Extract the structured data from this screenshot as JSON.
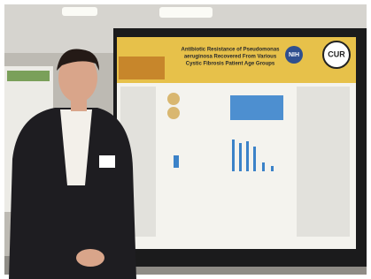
{
  "poster": {
    "title_lines": [
      "Antibiotic Resistance of Pseudomonas",
      "aeruginosa Recovered From Various",
      "Cystic Fibrosis Patient Age Groups"
    ],
    "logos": [
      "NIH",
      "CUR"
    ]
  }
}
